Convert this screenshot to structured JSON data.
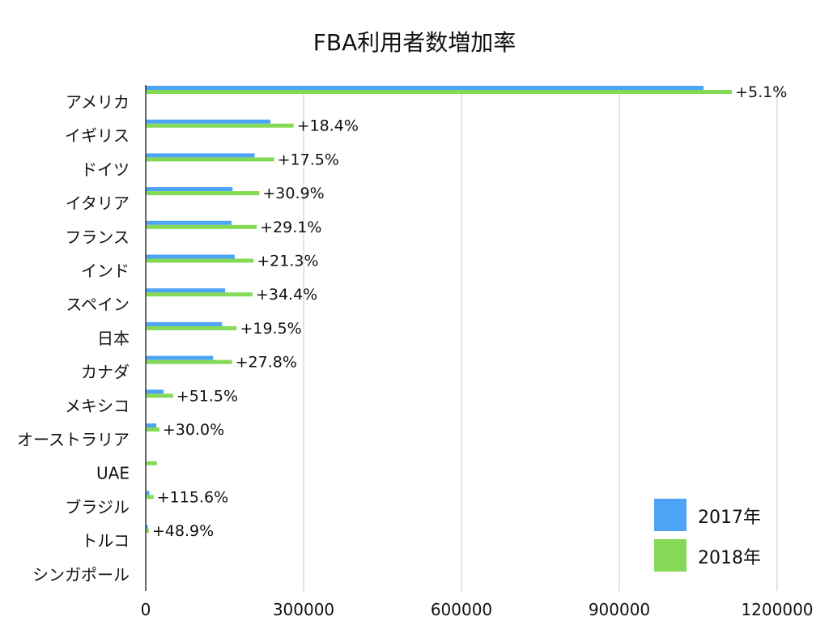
{
  "chart_data": {
    "type": "bar",
    "orientation": "horizontal",
    "title": "FBA利用者数増加率",
    "xlabel": "",
    "ylabel": "",
    "xlim": [
      0,
      1200000
    ],
    "xticks": [
      "0",
      "300000",
      "600000",
      "900000",
      "1200000"
    ],
    "grid": true,
    "legend_position": "bottom-right",
    "categories": [
      "アメリカ",
      "イギリス",
      "ドイツ",
      "イタリア",
      "フランス",
      "インド",
      "スペイン",
      "日本",
      "カナダ",
      "メキシコ",
      "オーストラリア",
      "UAE",
      "ブラジル",
      "トルコ",
      "シンガポール"
    ],
    "series": [
      {
        "name": "2017年",
        "color": "#4da3f5",
        "values": [
          1060000,
          237000,
          207000,
          165000,
          163000,
          169000,
          151000,
          145000,
          128000,
          34000,
          20000,
          0,
          7000,
          4000,
          1000
        ]
      },
      {
        "name": "2018年",
        "color": "#84d957",
        "values": [
          1114000,
          281000,
          244000,
          216000,
          211000,
          205000,
          203000,
          173000,
          164000,
          52000,
          26000,
          21000,
          15000,
          6000,
          1500
        ]
      }
    ],
    "annotations": [
      "+5.1%",
      "+18.4%",
      "+17.5%",
      "+30.9%",
      "+29.1%",
      "+21.3%",
      "+34.4%",
      "+19.5%",
      "+27.8%",
      "+51.5%",
      "+30.0%",
      "",
      "+115.6%",
      "+48.9%",
      ""
    ]
  }
}
